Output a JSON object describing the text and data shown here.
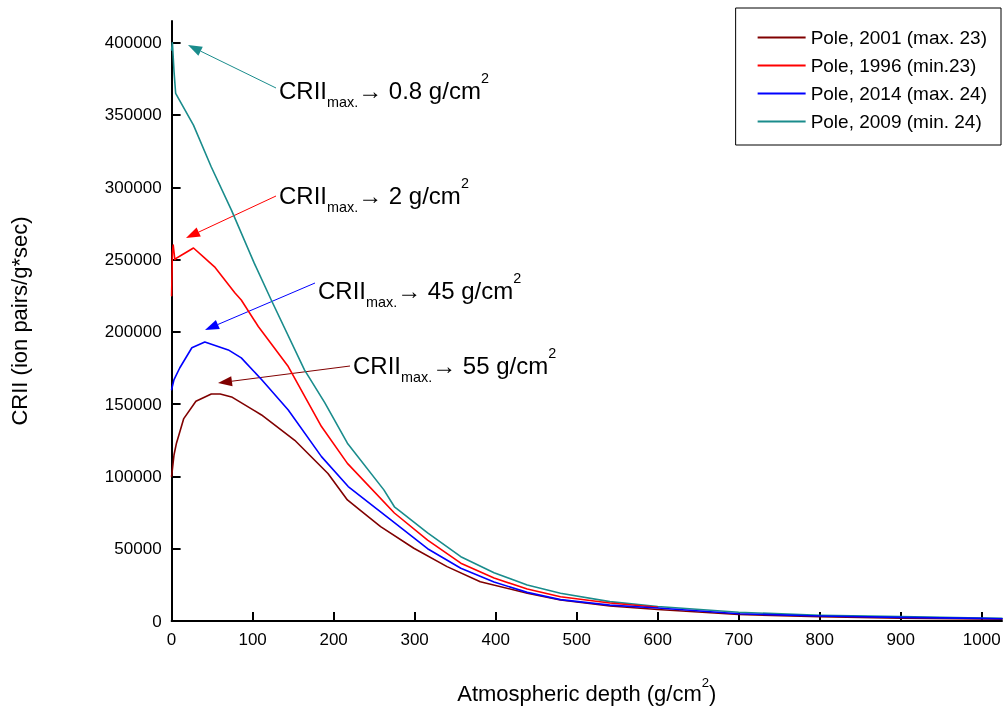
{
  "chart_data": {
    "type": "line",
    "xlabel": "Atmospheric depth (g/cm$^{2}$)",
    "ylabel": "CRII (ion pairs/g*sec)",
    "xlim": [
      0,
      1025
    ],
    "xticks": [
      0,
      100,
      200,
      300,
      400,
      500,
      600,
      700,
      800,
      900,
      1000
    ],
    "ylim": [
      0,
      415000
    ],
    "yticks": [
      0,
      50000,
      100000,
      150000,
      200000,
      250000,
      300000,
      350000,
      400000
    ],
    "grid": false,
    "legend": "top right",
    "marker": "none",
    "line_style": "solid",
    "series": [
      {
        "name": "Pole, 2001 (max. 23)",
        "color": "#800000",
        "x": [
          0,
          3,
          6,
          15,
          30,
          49,
          60,
          74,
          111,
          152,
          193,
          217,
          258,
          299,
          340,
          381,
          439,
          480,
          541,
          600,
          700,
          800,
          900,
          1000,
          1025
        ],
        "values": [
          100000,
          115000,
          123000,
          140000,
          152000,
          157000,
          157000,
          155000,
          142500,
          125000,
          102000,
          83700,
          65300,
          50300,
          37600,
          27200,
          19200,
          14500,
          10400,
          8000,
          4500,
          3000,
          2000,
          1500,
          1300
        ]
      },
      {
        "name": "Pole, 1996 (min.23)",
        "color": "#ff0000",
        "x": [
          0,
          1,
          2,
          4,
          6,
          12,
          27,
          53,
          78,
          86,
          107,
          144,
          185,
          217,
          275,
          316,
          357,
          398,
          439,
          480,
          541,
          600
        ],
        "values": [
          225000,
          255000,
          260000,
          250000,
          251000,
          253000,
          258000,
          245000,
          227000,
          222000,
          203700,
          176000,
          134500,
          109000,
          74700,
          56000,
          40000,
          29700,
          22100,
          16800,
          12400,
          9500
        ]
      },
      {
        "name": "Pole, 2014 (max. 24)",
        "color": "#0000ff",
        "x": [
          0,
          3,
          10,
          25,
          41,
          70,
          86,
          111,
          144,
          185,
          218,
          275,
          316,
          357,
          398,
          439,
          480,
          541,
          600,
          700,
          800,
          900,
          1000,
          1025
        ],
        "values": [
          160000,
          167000,
          175000,
          189000,
          193000,
          187500,
          182000,
          167000,
          146000,
          113700,
          93000,
          68000,
          50000,
          36500,
          27000,
          19800,
          14800,
          11000,
          9000,
          5000,
          3500,
          2500,
          1800,
          1600
        ]
      },
      {
        "name": "Pole, 2009 (min. 24)",
        "color": "#1a8c8c",
        "x": [
          0,
          1,
          3,
          5,
          27,
          49,
          74,
          102,
          123,
          164,
          189,
          217,
          262,
          275,
          316,
          357,
          398,
          439,
          480,
          541,
          600,
          700,
          800,
          900,
          1000,
          1025
        ],
        "values": [
          395000,
          400000,
          380000,
          365000,
          343000,
          314000,
          284000,
          247500,
          222000,
          173700,
          151000,
          123000,
          90700,
          79000,
          60900,
          44500,
          33400,
          24900,
          19200,
          13400,
          10000,
          6000,
          4000,
          3000,
          2000,
          1900
        ]
      }
    ],
    "annotations": [
      "CRII$_{max.}$→ 0.8 g/cm$^{2}$",
      "CRII$_{max.}$→ 2 g/cm$^{2}$",
      "CRII$_{max.}$→ 45 g/cm$^{2}$",
      "CRII$_{max.}$→ 55 g/cm$^{2}$"
    ]
  }
}
